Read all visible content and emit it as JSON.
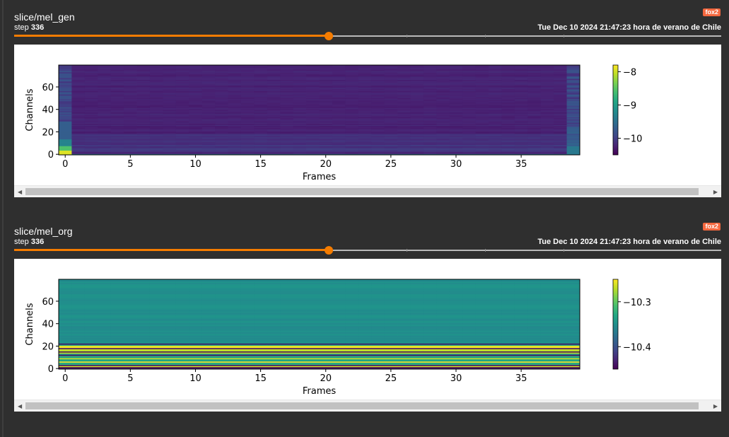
{
  "cards": [
    {
      "title": "slice/mel_gen",
      "step_label": "step",
      "step_value": "336",
      "run_badge": "fox2",
      "timestamp": "Tue Dec 10 2024 21:47:23 hora de verano de Chile",
      "slider_fraction": 0.445,
      "chart_data": {
        "type": "heatmap",
        "xlabel": "Frames",
        "ylabel": "Channels",
        "xticks": [
          0,
          5,
          10,
          15,
          20,
          25,
          30,
          35
        ],
        "yticks": [
          0,
          20,
          40,
          60
        ],
        "xlim": [
          -0.5,
          39.5
        ],
        "ylim": [
          -0.5,
          79.5
        ],
        "frames": 40,
        "channels": 80,
        "colormap": "viridis",
        "colorbar": {
          "ticks": [
            -8,
            -9,
            -10
          ],
          "range": [
            -10.5,
            -7.8
          ]
        },
        "pattern": "mostly near minimum with brighter low channels at frame 0 and frame 39"
      }
    },
    {
      "title": "slice/mel_org",
      "step_label": "step",
      "step_value": "336",
      "run_badge": "fox2",
      "timestamp": "Tue Dec 10 2024 21:47:23 hora de verano de Chile",
      "slider_fraction": 0.445,
      "chart_data": {
        "type": "heatmap",
        "xlabel": "Frames",
        "ylabel": "Channels",
        "xticks": [
          0,
          5,
          10,
          15,
          20,
          25,
          30,
          35
        ],
        "yticks": [
          0,
          20,
          40,
          60
        ],
        "xlim": [
          -0.5,
          39.5
        ],
        "ylim": [
          -0.5,
          79.5
        ],
        "frames": 40,
        "channels": 80,
        "colormap": "viridis",
        "colorbar": {
          "ticks": [
            -10.3,
            -10.4
          ],
          "range": [
            -10.45,
            -10.25
          ]
        },
        "pattern": "constant across frames; horizontal bands vary by channel with bright bands near channels 8-22"
      }
    }
  ],
  "colors": {
    "accent": "#f57c00",
    "badge": "#f4683f",
    "background": "#2f2f2f"
  }
}
